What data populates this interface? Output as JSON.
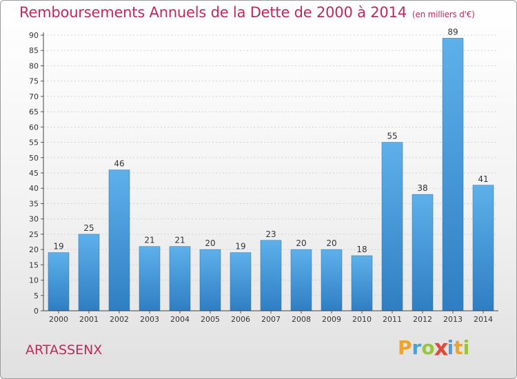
{
  "chart_data": {
    "type": "bar",
    "title": "Remboursements Annuels de la Dette de 2000 à 2014",
    "subtitle": "(en milliers d'€)",
    "categories": [
      "2000",
      "2001",
      "2002",
      "2003",
      "2004",
      "2005",
      "2006",
      "2007",
      "2008",
      "2009",
      "2010",
      "2011",
      "2012",
      "2013",
      "2014"
    ],
    "values": [
      19,
      25,
      46,
      21,
      21,
      20,
      19,
      23,
      20,
      20,
      18,
      55,
      38,
      89,
      41
    ],
    "ylim": [
      0,
      90
    ],
    "ytick_step": 5,
    "grid": true,
    "bar_color": "#4a9ee0",
    "data_labels": true
  },
  "footer": {
    "commune": "ARTASSENX",
    "brand_letters": [
      {
        "char": "P",
        "color": "#f0a22b"
      },
      {
        "char": "r",
        "color": "#4aa0d8"
      },
      {
        "char": "o",
        "color": "#9ac43c"
      },
      {
        "char": "x",
        "color": "#e04a3c"
      },
      {
        "char": "i",
        "color": "#4aa0d8"
      },
      {
        "char": "t",
        "color": "#f0a22b"
      },
      {
        "char": "i",
        "color": "#9ac43c"
      }
    ]
  }
}
